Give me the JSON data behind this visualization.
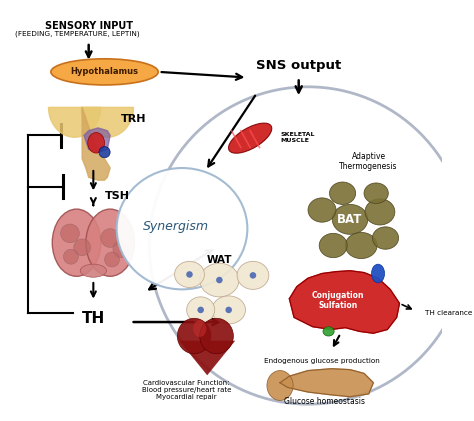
{
  "background_color": "#ffffff",
  "sensory_input_title": "Sensory Input",
  "sensory_input_subtitle": "(Feeding, Temperature, Leptin)",
  "hypothalamus_label": "Hypothalamus",
  "trh_label": "TRH",
  "tsh_label": "TSH",
  "th_label": "TH",
  "sns_output_label": "SNS output",
  "synergism_label": "Synergism",
  "skeletal_muscle_label": "SKELETAL\nMUSCLE",
  "adaptive_label": "Adaptive\nThermogenesis",
  "bat_label": "BAT",
  "wat_label": "WAT",
  "conjugation_label": "Conjugation\nSulfation",
  "th_clearance_label": "TH clearance",
  "endogenous_label": "Endogenous glucose production",
  "cardiovascular_label": "Cardiovascular Function:\nBlood pressure/heart rate\nMyocardial repair",
  "glucose_homeostasis_label": "Glucose homeostasis"
}
